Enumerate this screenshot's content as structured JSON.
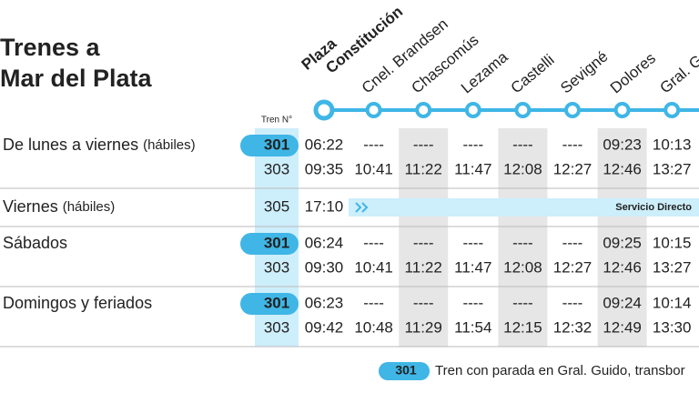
{
  "title": [
    "Trenes a",
    "Mar del Plata"
  ],
  "train_header": "Tren N°",
  "stations": [
    [
      "Plaza",
      "Constitución"
    ],
    [
      "Cnel. Brandsen"
    ],
    [
      "Chascomús"
    ],
    [
      "Lezama"
    ],
    [
      "Castelli"
    ],
    [
      "Sevigné"
    ],
    [
      "Dolores"
    ],
    [
      "Gral. G"
    ]
  ],
  "groups": [
    {
      "label": "De lunes a viernes",
      "note": "(hábiles)",
      "trains": [
        {
          "number": "301",
          "highlighted": true,
          "times": [
            "06:22",
            "----",
            "----",
            "----",
            "----",
            "----",
            "09:23",
            "10:13"
          ]
        },
        {
          "number": "303",
          "highlighted": false,
          "times": [
            "09:35",
            "10:41",
            "11:22",
            "11:47",
            "12:08",
            "12:27",
            "12:46",
            "13:27"
          ]
        }
      ]
    },
    {
      "label": "Viernes",
      "note": "(hábiles)",
      "trains": [
        {
          "number": "305",
          "highlighted": false,
          "times": [
            "17:10"
          ],
          "service": "Servicio Directo"
        }
      ]
    },
    {
      "label": "Sábados",
      "trains": [
        {
          "number": "301",
          "highlighted": true,
          "times": [
            "06:24",
            "----",
            "----",
            "----",
            "----",
            "----",
            "09:25",
            "10:15"
          ]
        },
        {
          "number": "303",
          "highlighted": false,
          "times": [
            "09:30",
            "10:41",
            "11:22",
            "11:47",
            "12:08",
            "12:27",
            "12:46",
            "13:27"
          ]
        }
      ]
    },
    {
      "label": "Domingos y feriados",
      "trains": [
        {
          "number": "301",
          "highlighted": true,
          "times": [
            "06:23",
            "----",
            "----",
            "----",
            "----",
            "----",
            "09:24",
            "10:14"
          ]
        },
        {
          "number": "303",
          "highlighted": false,
          "times": [
            "09:42",
            "10:48",
            "11:29",
            "11:54",
            "12:15",
            "12:32",
            "12:49",
            "13:30"
          ]
        }
      ]
    }
  ],
  "legend": {
    "badge": "301",
    "text": "Tren con parada en Gral. Guido, transbor"
  }
}
